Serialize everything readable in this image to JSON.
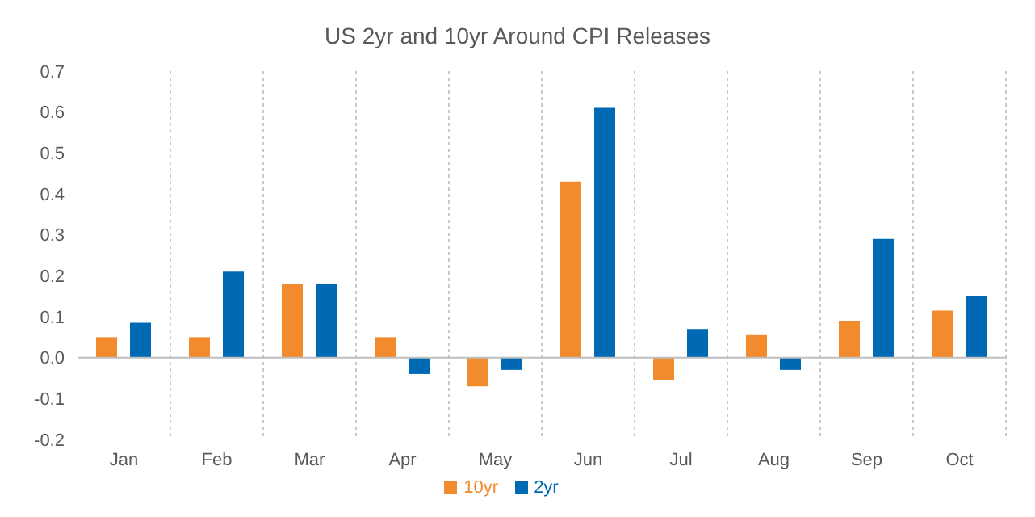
{
  "chart_data": {
    "type": "bar",
    "title": "US 2yr and 10yr Around CPI Releases",
    "categories": [
      "Jan",
      "Feb",
      "Mar",
      "Apr",
      "May",
      "Jun",
      "Jul",
      "Aug",
      "Sep",
      "Oct"
    ],
    "series": [
      {
        "name": "10yr",
        "color": "#f28a2e",
        "values": [
          0.05,
          0.05,
          0.18,
          0.05,
          -0.07,
          0.43,
          -0.055,
          0.055,
          0.09,
          0.115
        ]
      },
      {
        "name": "2yr",
        "color": "#0069b4",
        "values": [
          0.085,
          0.21,
          0.18,
          -0.04,
          -0.03,
          0.61,
          0.07,
          -0.03,
          0.29,
          0.15
        ]
      }
    ],
    "ylim": [
      -0.2,
      0.7
    ],
    "yticks": [
      {
        "value": -0.2,
        "label": "-0.2"
      },
      {
        "value": -0.1,
        "label": "-0.1"
      },
      {
        "value": 0,
        "label": "0.0"
      },
      {
        "value": 0.1,
        "label": "0.1"
      },
      {
        "value": 0.2,
        "label": "0.2"
      },
      {
        "value": 0.3,
        "label": "0.3"
      },
      {
        "value": 0.4,
        "label": "0.4"
      },
      {
        "value": 0.5,
        "label": "0.5"
      },
      {
        "value": 0.6,
        "label": "0.6"
      },
      {
        "value": 0.7,
        "label": "0.7"
      }
    ],
    "grid": "x",
    "legend": "bottom"
  }
}
